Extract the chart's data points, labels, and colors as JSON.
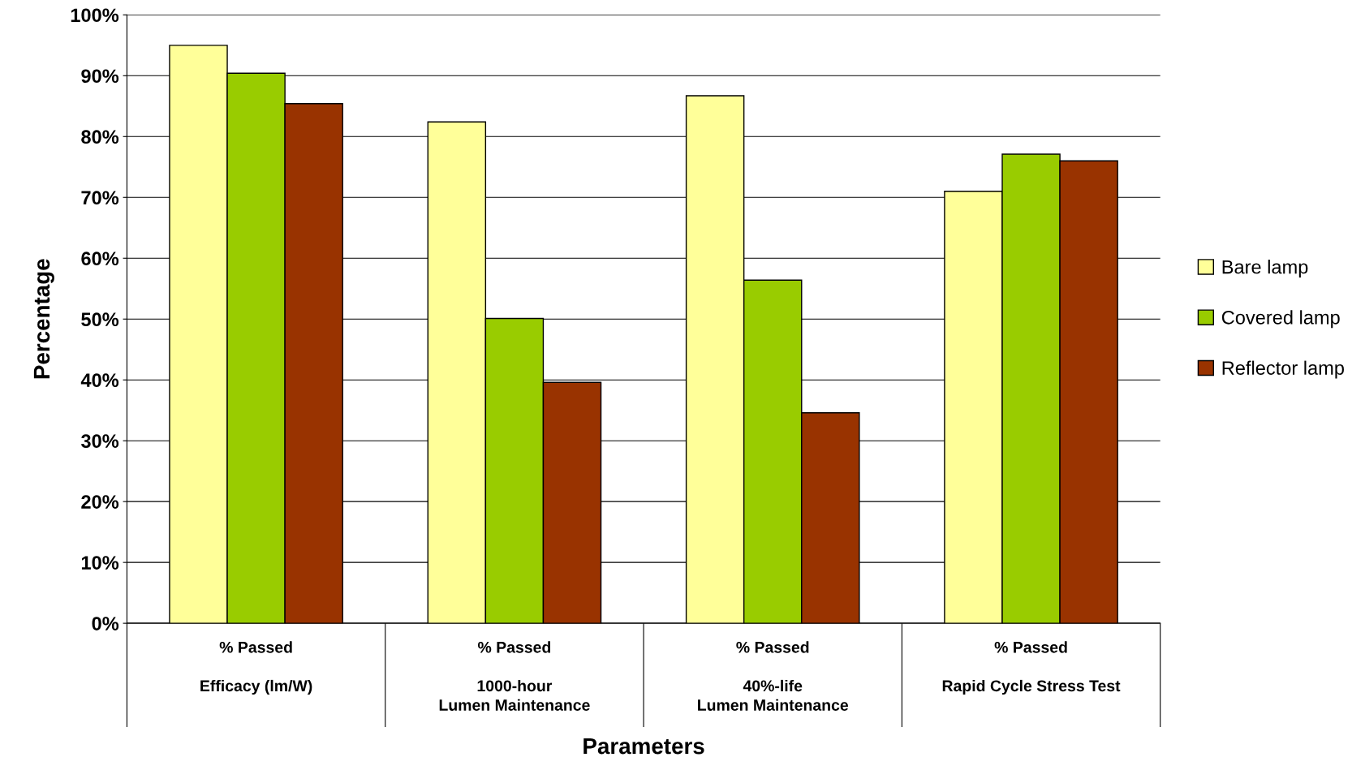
{
  "chart_data": {
    "type": "bar",
    "xlabel": "Parameters",
    "ylabel": "Percentage",
    "categories": [
      "% Passed\n\nEfficacy (lm/W)",
      "% Passed\n\n1000-hour\nLumen Maintenance",
      "% Passed\n\n40%-life\nLumen Maintenance",
      "% Passed\n\nRapid Cycle Stress Test"
    ],
    "series": [
      {
        "name": "Bare lamp",
        "color": "#ffff99",
        "values": [
          95,
          82.4,
          86.7,
          71
        ]
      },
      {
        "name": "Covered lamp",
        "color": "#99cc00",
        "values": [
          90.4,
          50.1,
          56.4,
          77.1
        ]
      },
      {
        "name": "Reflector lamp",
        "color": "#993300",
        "values": [
          85.4,
          39.6,
          34.6,
          76
        ]
      }
    ],
    "ylim": [
      0,
      100
    ],
    "yticks": [
      {
        "value": 0,
        "label": "0%"
      },
      {
        "value": 10,
        "label": "10%"
      },
      {
        "value": 20,
        "label": "20%"
      },
      {
        "value": 30,
        "label": "30%"
      },
      {
        "value": 40,
        "label": "40%"
      },
      {
        "value": 50,
        "label": "50%"
      },
      {
        "value": 60,
        "label": "60%"
      },
      {
        "value": 70,
        "label": "70%"
      },
      {
        "value": 80,
        "label": "80%"
      },
      {
        "value": 90,
        "label": "90%"
      },
      {
        "value": 100,
        "label": "100%"
      }
    ],
    "grid": "y",
    "legend": "right"
  }
}
